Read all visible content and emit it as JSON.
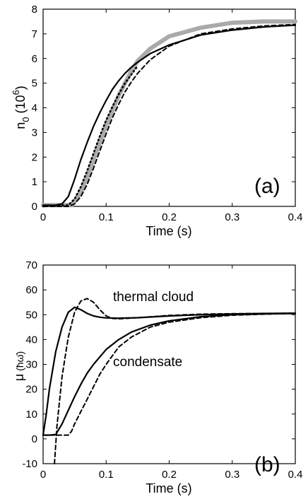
{
  "chart_data": [
    {
      "type": "line",
      "panel_label": "(a)",
      "xlabel": "Time  (s)",
      "ylabel_main": "n",
      "ylabel_sub": "0",
      "ylabel_unit_open": "  (10",
      "ylabel_unit_exp": "6",
      "ylabel_unit_close": ")",
      "xlim": [
        0,
        0.4
      ],
      "ylim": [
        0,
        8
      ],
      "xticks": [
        "0",
        "0.1",
        "0.2",
        "0.3",
        "0.4"
      ],
      "yticks": [
        "0",
        "1",
        "2",
        "3",
        "4",
        "5",
        "6",
        "7",
        "8"
      ],
      "series": [
        {
          "style": "gray-thick",
          "color": "#aaaaaa",
          "x": [
            0,
            0.02,
            0.045,
            0.05,
            0.06,
            0.07,
            0.08,
            0.09,
            0.1,
            0.11,
            0.12,
            0.13,
            0.14,
            0.15,
            0.17,
            0.2,
            0.25,
            0.3,
            0.35,
            0.4
          ],
          "y": [
            0.05,
            0.05,
            0.05,
            0.2,
            0.6,
            1.2,
            1.9,
            2.6,
            3.3,
            3.9,
            4.5,
            5.0,
            5.5,
            5.9,
            6.4,
            6.9,
            7.25,
            7.45,
            7.5,
            7.5
          ]
        },
        {
          "style": "solid",
          "color": "#000000",
          "x": [
            0,
            0.02,
            0.03,
            0.04,
            0.05,
            0.06,
            0.07,
            0.08,
            0.09,
            0.1,
            0.11,
            0.12,
            0.13,
            0.14,
            0.15,
            0.17,
            0.2,
            0.25,
            0.3,
            0.35,
            0.4
          ],
          "y": [
            0.05,
            0.05,
            0.1,
            0.4,
            1.1,
            1.9,
            2.6,
            3.25,
            3.8,
            4.3,
            4.75,
            5.1,
            5.4,
            5.65,
            5.85,
            6.2,
            6.55,
            6.95,
            7.15,
            7.28,
            7.35
          ]
        },
        {
          "style": "dashed",
          "color": "#000000",
          "x": [
            0,
            0.04,
            0.05,
            0.06,
            0.07,
            0.08,
            0.09,
            0.1,
            0.11,
            0.12,
            0.13,
            0.14,
            0.15,
            0.17,
            0.2,
            0.25,
            0.3,
            0.35,
            0.4
          ],
          "y": [
            0.0,
            0.0,
            0.1,
            0.4,
            0.9,
            1.55,
            2.25,
            2.95,
            3.6,
            4.15,
            4.65,
            5.05,
            5.4,
            5.95,
            6.5,
            7.0,
            7.2,
            7.32,
            7.38
          ]
        },
        {
          "style": "dotted",
          "color": "#000000",
          "x": [
            0,
            0.04,
            0.05,
            0.06,
            0.07,
            0.08,
            0.09,
            0.1,
            0.11,
            0.12,
            0.13,
            0.14,
            0.15
          ],
          "y": [
            0.0,
            0.05,
            0.3,
            0.8,
            1.45,
            2.15,
            2.85,
            3.5,
            4.05,
            4.55,
            5.0,
            5.35,
            5.7
          ]
        }
      ]
    },
    {
      "type": "line",
      "panel_label": "(b)",
      "xlabel": "Time  (s)",
      "ylabel_main": "μ",
      "ylabel_unit": "  (ħω̄)",
      "xlim": [
        0,
        0.4
      ],
      "ylim": [
        -10,
        70
      ],
      "xticks": [
        "0",
        "0.1",
        "0.2",
        "0.3",
        "0.4"
      ],
      "yticks": [
        "-10",
        "0",
        "10",
        "20",
        "30",
        "40",
        "50",
        "60",
        "70"
      ],
      "annotations": [
        "thermal cloud",
        "condensate"
      ],
      "series": [
        {
          "style": "solid",
          "color": "#000000",
          "label": "thermal cloud",
          "x": [
            0,
            0.005,
            0.01,
            0.02,
            0.03,
            0.04,
            0.05,
            0.06,
            0.07,
            0.08,
            0.09,
            0.1,
            0.12,
            0.15,
            0.2,
            0.25,
            0.3,
            0.35,
            0.4
          ],
          "y": [
            1.5,
            10,
            20,
            35,
            45,
            51,
            53,
            52,
            50.5,
            49.5,
            49,
            48.7,
            48.6,
            48.8,
            49.5,
            50,
            50.3,
            50.5,
            50.6
          ]
        },
        {
          "style": "dashed",
          "color": "#000000",
          "label": "thermal cloud",
          "x": [
            0.018,
            0.022,
            0.026,
            0.03,
            0.035,
            0.04,
            0.05,
            0.06,
            0.07,
            0.08,
            0.09,
            0.1,
            0.11,
            0.12,
            0.15,
            0.2,
            0.25,
            0.3,
            0.35,
            0.4
          ],
          "y": [
            -10,
            5,
            15,
            25,
            33,
            41,
            51,
            55.5,
            56.5,
            55,
            52,
            49.5,
            48.5,
            48.3,
            48.8,
            49.7,
            50.2,
            50.4,
            50.5,
            50.6
          ]
        },
        {
          "style": "solid",
          "color": "#000000",
          "label": "condensate",
          "x": [
            0,
            0.01,
            0.02,
            0.03,
            0.04,
            0.05,
            0.06,
            0.07,
            0.08,
            0.1,
            0.12,
            0.14,
            0.17,
            0.2,
            0.25,
            0.3,
            0.35,
            0.4
          ],
          "y": [
            1.5,
            1.5,
            1.7,
            6,
            11.5,
            17,
            22,
            26.5,
            30,
            36,
            40,
            43,
            45.8,
            47.5,
            49.2,
            50,
            50.3,
            50.5
          ]
        },
        {
          "style": "dashed",
          "color": "#000000",
          "label": "condensate",
          "x": [
            0,
            0.02,
            0.04,
            0.045,
            0.05,
            0.06,
            0.07,
            0.08,
            0.09,
            0.1,
            0.12,
            0.14,
            0.17,
            0.2,
            0.25,
            0.3,
            0.35,
            0.4
          ],
          "y": [
            1.5,
            1.5,
            1.5,
            3,
            6,
            11,
            16,
            21,
            26,
            30,
            37,
            41,
            45,
            47,
            48.8,
            49.8,
            50.2,
            50.5
          ]
        }
      ]
    }
  ]
}
